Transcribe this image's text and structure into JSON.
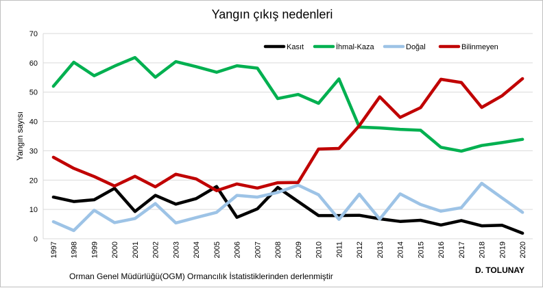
{
  "chart_data": {
    "type": "line",
    "title": "Yangın çıkış nedenleri",
    "ylabel": "Yangın  sayısı",
    "xlabel": "",
    "ylim": [
      0,
      70
    ],
    "yticks": [
      "0",
      "10",
      "20",
      "30",
      "40",
      "50",
      "60",
      "70"
    ],
    "categories": [
      "1997",
      "1998",
      "1999",
      "2000",
      "2001",
      "2002",
      "2003",
      "2004",
      "2005",
      "2006",
      "2007",
      "2008",
      "2009",
      "2010",
      "2011",
      "2012",
      "2013",
      "2014",
      "2015",
      "2016",
      "2017",
      "2018",
      "2019",
      "2020"
    ],
    "grid": true,
    "legend_position": "top-right",
    "series": [
      {
        "name": "Kasıt",
        "color": "#000000",
        "values": [
          14.2,
          12.7,
          13.3,
          17.2,
          9.3,
          14.8,
          11.8,
          13.7,
          17.8,
          7.3,
          10.2,
          17.5,
          12.7,
          7.9,
          7.9,
          8.0,
          6.8,
          5.9,
          6.3,
          4.7,
          6.2,
          4.4,
          4.6,
          1.9
        ]
      },
      {
        "name": "İhmal-Kaza",
        "color": "#00b050",
        "values": [
          52.0,
          60.2,
          55.6,
          58.9,
          61.8,
          55.1,
          60.4,
          58.7,
          56.8,
          59.0,
          58.2,
          47.8,
          49.2,
          46.2,
          54.5,
          38.1,
          37.8,
          37.3,
          37.0,
          31.2,
          29.9,
          31.8,
          32.8,
          33.9
        ]
      },
      {
        "name": "Doğal",
        "color": "#9dc3e6",
        "values": [
          5.8,
          2.8,
          9.7,
          5.5,
          6.9,
          12.0,
          5.4,
          7.2,
          9.0,
          14.8,
          14.2,
          15.8,
          18.3,
          15.0,
          6.6,
          15.2,
          6.7,
          15.3,
          11.7,
          9.4,
          10.6,
          18.9,
          13.9,
          9.0
        ]
      },
      {
        "name": "Bilinmeyen",
        "color": "#c00000",
        "values": [
          27.8,
          24.0,
          21.2,
          18.0,
          21.3,
          17.7,
          22.0,
          20.4,
          16.4,
          18.7,
          17.3,
          19.1,
          19.2,
          30.6,
          30.8,
          38.6,
          48.4,
          41.4,
          44.7,
          54.4,
          53.3,
          44.8,
          48.8,
          54.6
        ]
      }
    ]
  },
  "footer": {
    "source": "Orman Genel Müdürlüğü(OGM) Ormancılık İstatistiklerinden derlenmiştir",
    "author": "D. TOLUNAY"
  }
}
